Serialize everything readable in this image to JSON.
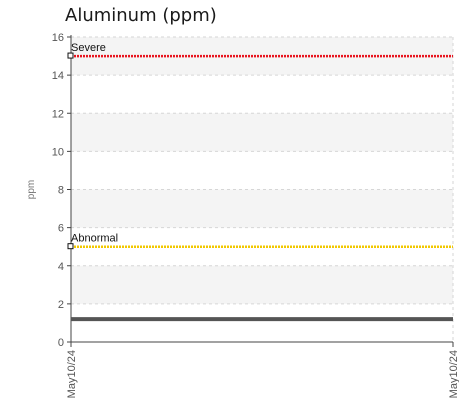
{
  "chart_data": {
    "type": "line",
    "title": "Aluminum (ppm)",
    "ylabel": "ppm",
    "xlabel": "",
    "ylim": [
      0,
      16
    ],
    "y_ticks": [
      0,
      2,
      4,
      6,
      8,
      10,
      12,
      14,
      16
    ],
    "x_tick_labels": [
      "May10/24",
      "May10/24"
    ],
    "grid": true,
    "series": [
      {
        "values": [
          1.2,
          1.2
        ],
        "color": "#555555"
      }
    ],
    "reference_lines": [
      {
        "label": "Severe",
        "value": 15,
        "color": "#e8141e"
      },
      {
        "label": "Abnormal",
        "value": 5,
        "color": "#f2c800"
      }
    ]
  }
}
